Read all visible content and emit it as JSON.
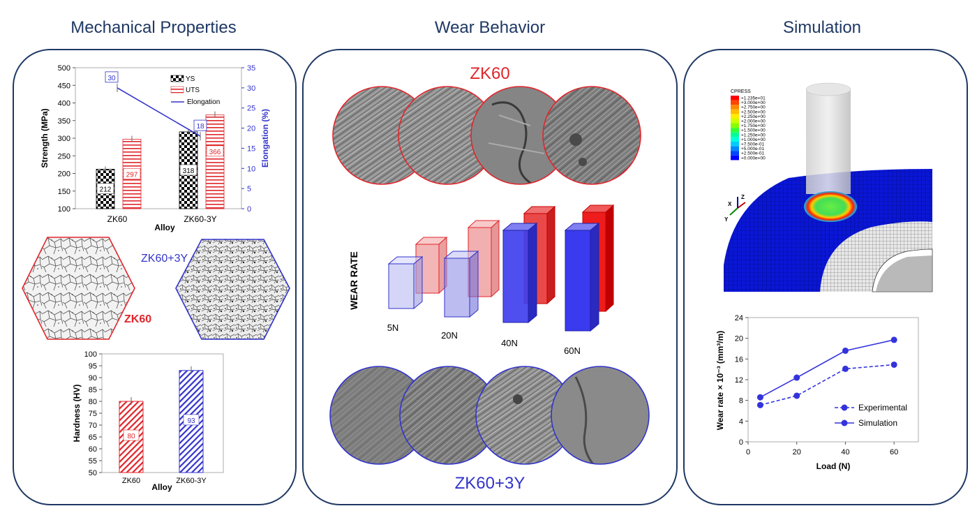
{
  "titles": {
    "mechanical": "Mechanical Properties",
    "wear": "Wear Behavior",
    "simulation": "Simulation"
  },
  "colors": {
    "navy": "#1f3864",
    "red": "#e0262b",
    "blue": "#3333cc"
  },
  "strength_chart": {
    "type": "bar",
    "ylabel": "Strength (MPa)",
    "y2label": "Elongation (%)",
    "xlabel": "Alloy",
    "categories": [
      "ZK60",
      "ZK60-3Y"
    ],
    "ylim": [
      100,
      500
    ],
    "y2lim": [
      0,
      35
    ],
    "yticks": [
      "500",
      "450",
      "400",
      "350",
      "300",
      "250",
      "200",
      "150",
      "100"
    ],
    "y2ticks": [
      "35",
      "30",
      "25",
      "20",
      "15",
      "10",
      "5",
      "0"
    ],
    "legend": {
      "ys": "YS",
      "uts": "UTS",
      "elong": "Elongation"
    },
    "ys": [
      212,
      318
    ],
    "uts": [
      297,
      366
    ],
    "elongation": [
      30,
      18
    ],
    "ys_labels": [
      "212",
      "318"
    ],
    "uts_labels": [
      "297",
      "366"
    ],
    "elong_labels": [
      "30",
      "18"
    ]
  },
  "micro": {
    "zk60": "ZK60",
    "zk60y": "ZK60+3Y"
  },
  "hardness_chart": {
    "type": "bar",
    "ylabel": "Hardness (HV)",
    "xlabel": "Alloy",
    "categories": [
      "ZK60",
      "ZK60-3Y"
    ],
    "ylim": [
      50,
      100
    ],
    "yticks": [
      "100",
      "95",
      "90",
      "85",
      "80",
      "75",
      "70",
      "65",
      "60",
      "55",
      "50"
    ],
    "values": [
      80,
      93
    ],
    "labels": [
      "80",
      "93"
    ]
  },
  "wear": {
    "top_label": "ZK60",
    "bottom_label": "ZK60+3Y",
    "axis_label": "WEAR  RATE",
    "loads": [
      "5N",
      "20N",
      "40N",
      "60N"
    ]
  },
  "fea": {
    "legend_title": "CPRESS",
    "legend_values": [
      "+1.235e+01",
      "+3.000e+00",
      "+2.750e+00",
      "+2.500e+00",
      "+2.250e+00",
      "+2.000e+00",
      "+1.750e+00",
      "+1.500e+00",
      "+1.250e+00",
      "+1.000e+00",
      "+7.500e-01",
      "+5.000e-01",
      "+2.500e-01",
      "+0.000e+00"
    ],
    "legend_colors": [
      "#ff0000",
      "#ff4400",
      "#ff8800",
      "#ffbb00",
      "#ffee00",
      "#ccff00",
      "#88ff00",
      "#33ff33",
      "#00ff99",
      "#00ffdd",
      "#00ccff",
      "#0088ff",
      "#0044ff",
      "#0000ff"
    ],
    "axes": {
      "x": "X",
      "y": "Y",
      "z": "Z"
    }
  },
  "sim_chart": {
    "type": "line",
    "xlabel": "Load (N)",
    "ylabel": "Wear rate × 10⁻³ (mm³/m)",
    "xlim": [
      0,
      70
    ],
    "ylim": [
      0,
      24
    ],
    "xticks": [
      "0",
      "20",
      "40",
      "60"
    ],
    "yticks": [
      "24",
      "20",
      "16",
      "12",
      "8",
      "4",
      "0"
    ],
    "series": [
      {
        "name": "Experimental",
        "x": [
          5,
          20,
          40,
          60
        ],
        "values": [
          7.1,
          8.9,
          14.1,
          14.9
        ]
      },
      {
        "name": "Simulation",
        "x": [
          5,
          20,
          40,
          60
        ],
        "values": [
          8.6,
          12.4,
          17.6,
          19.7
        ]
      }
    ]
  }
}
